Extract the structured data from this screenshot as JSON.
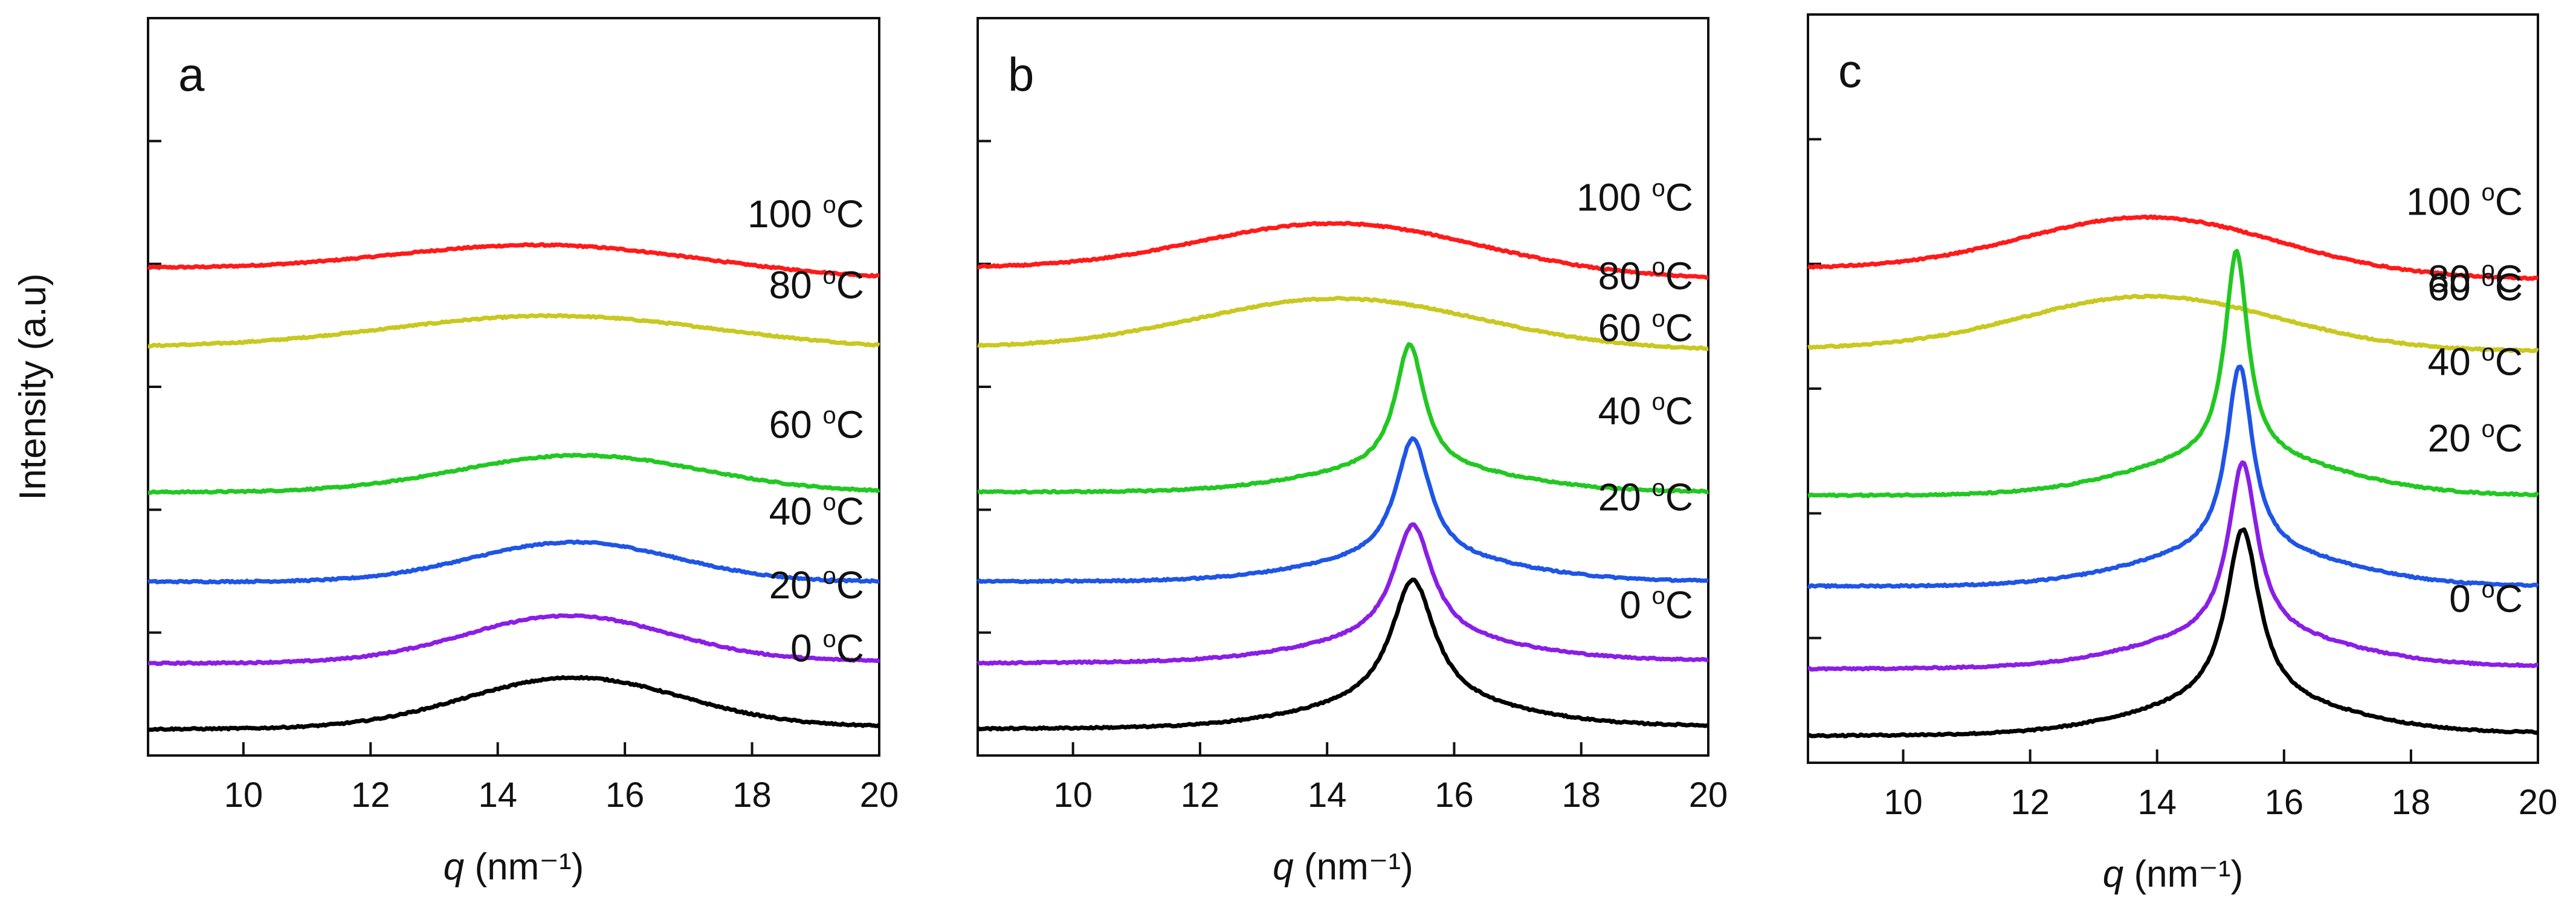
{
  "figure": {
    "ylabel": "Intensity (a.u)"
  },
  "chart_data": [
    {
      "type": "line",
      "panel": "a",
      "title": "a",
      "xlabel_var": "q",
      "xlabel_unit": "(nm⁻¹)",
      "xlim": [
        8.5,
        20
      ],
      "xticks": [
        10,
        12,
        14,
        16,
        18,
        20
      ],
      "ylim": [
        0,
        5.6
      ],
      "series": [
        {
          "name": "100 °C",
          "temp": "100",
          "unit": "C",
          "color": "#ff1a1a",
          "baseline": 3.7,
          "baseline_end": 3.62,
          "peak_x": 14.8,
          "peak_height": 0.22,
          "peak_width": 2.4,
          "shape": "gauss",
          "label_x": 15.0
        },
        {
          "name": "80 °C",
          "temp": "80",
          "unit": "C",
          "color": "#c8c820",
          "baseline": 3.1,
          "baseline_end": 3.08,
          "peak_x": 14.9,
          "peak_height": 0.25,
          "peak_width": 2.6,
          "shape": "gauss",
          "label_x": 15.2
        },
        {
          "name": "60 °C",
          "temp": "60",
          "unit": "C",
          "color": "#22c822",
          "baseline": 2.0,
          "baseline_end": 2.0,
          "peak_x": 15.3,
          "peak_height": 0.28,
          "peak_width": 1.9,
          "shape": "gauss",
          "label_x": 15.2
        },
        {
          "name": "40 °C",
          "temp": "40",
          "unit": "C",
          "color": "#1f55e6",
          "baseline": 1.32,
          "baseline_end": 1.32,
          "peak_x": 15.2,
          "peak_height": 0.3,
          "peak_width": 1.6,
          "shape": "gauss",
          "label_x": 15.2
        },
        {
          "name": "20 °C",
          "temp": "20",
          "unit": "C",
          "color": "#8a1ee6",
          "baseline": 0.7,
          "baseline_end": 0.72,
          "peak_x": 15.1,
          "peak_height": 0.35,
          "peak_width": 1.6,
          "shape": "gauss",
          "label_x": 15.2
        },
        {
          "name": "0 °C",
          "temp": "0",
          "unit": "C",
          "color": "#000000",
          "baseline": 0.2,
          "baseline_end": 0.22,
          "peak_x": 15.2,
          "peak_height": 0.38,
          "peak_width": 1.7,
          "shape": "gauss",
          "label_x": 16.2
        }
      ]
    },
    {
      "type": "line",
      "panel": "b",
      "title": "b",
      "xlabel_var": "q",
      "xlabel_unit": "(nm⁻¹)",
      "xlim": [
        8.5,
        20
      ],
      "xticks": [
        10,
        12,
        14,
        16,
        18,
        20
      ],
      "ylim": [
        0,
        5.6
      ],
      "series": [
        {
          "name": "100 °C",
          "temp": "100",
          "unit": "C",
          "color": "#ff1a1a",
          "baseline": 3.7,
          "baseline_end": 3.62,
          "peak_x": 14.2,
          "peak_height": 0.38,
          "peak_width": 2.2,
          "shape": "gauss",
          "label_x": 15.6
        },
        {
          "name": "80 °C",
          "temp": "80",
          "unit": "C",
          "color": "#c8c820",
          "baseline": 3.1,
          "baseline_end": 3.08,
          "peak_x": 14.2,
          "peak_height": 0.38,
          "peak_width": 2.2,
          "shape": "gauss",
          "label_x": 16.0
        },
        {
          "name": "60 °C",
          "temp": "60",
          "unit": "C",
          "color": "#22c822",
          "baseline": 2.0,
          "baseline_end": 2.0,
          "peak_x": 15.3,
          "peak_height": 0.95,
          "peak_width": 0.28,
          "shape": "lorentz",
          "label_x": 16.0
        },
        {
          "name": "40 °C",
          "temp": "40",
          "unit": "C",
          "color": "#1f55e6",
          "baseline": 1.32,
          "baseline_end": 1.32,
          "peak_x": 15.35,
          "peak_height": 0.92,
          "peak_width": 0.33,
          "shape": "lorentz",
          "label_x": 16.0
        },
        {
          "name": "20 °C",
          "temp": "20",
          "unit": "C",
          "color": "#8a1ee6",
          "baseline": 0.7,
          "baseline_end": 0.72,
          "peak_x": 15.35,
          "peak_height": 0.88,
          "peak_width": 0.38,
          "shape": "lorentz",
          "label_x": 16.0
        },
        {
          "name": "0 °C",
          "temp": "0",
          "unit": "C",
          "color": "#000000",
          "baseline": 0.2,
          "baseline_end": 0.22,
          "peak_x": 15.35,
          "peak_height": 0.95,
          "peak_width": 0.42,
          "shape": "lorentz",
          "label_x": 16.3
        }
      ]
    },
    {
      "type": "line",
      "panel": "c",
      "title": "c",
      "xlabel_var": "q",
      "xlabel_unit": "(nm⁻¹)",
      "xlim": [
        8.5,
        20
      ],
      "xticks": [
        10,
        12,
        14,
        16,
        18,
        20
      ],
      "ylim": [
        0,
        5.6
      ],
      "series": [
        {
          "name": "100 °C",
          "temp": "100",
          "unit": "C",
          "color": "#ff1a1a",
          "baseline": 3.7,
          "baseline_end": 3.62,
          "peak_x": 13.9,
          "peak_height": 0.42,
          "peak_width": 2.0,
          "shape": "gauss",
          "label_x": 16.0
        },
        {
          "name": "80 °C",
          "temp": "80",
          "unit": "C",
          "color": "#c8c820",
          "baseline": 3.1,
          "baseline_end": 3.08,
          "peak_x": 13.9,
          "peak_height": 0.4,
          "peak_width": 2.0,
          "shape": "gauss",
          "label_x": 16.0
        },
        {
          "name": "60 °C",
          "temp": "60",
          "unit": "C",
          "color": "#22c822",
          "baseline": 2.0,
          "baseline_end": 2.0,
          "peak_x": 15.25,
          "peak_height": 1.55,
          "peak_width": 0.22,
          "shape": "lorentz",
          "label_x": 16.0
        },
        {
          "name": "40 °C",
          "temp": "40",
          "unit": "C",
          "color": "#1f55e6",
          "baseline": 1.32,
          "baseline_end": 1.32,
          "peak_x": 15.3,
          "peak_height": 1.4,
          "peak_width": 0.25,
          "shape": "lorentz",
          "label_x": 16.0
        },
        {
          "name": "20 °C",
          "temp": "20",
          "unit": "C",
          "color": "#8a1ee6",
          "baseline": 0.7,
          "baseline_end": 0.72,
          "peak_x": 15.35,
          "peak_height": 1.3,
          "peak_width": 0.28,
          "shape": "lorentz",
          "label_x": 16.0
        },
        {
          "name": "0 °C",
          "temp": "0",
          "unit": "C",
          "color": "#000000",
          "baseline": 0.2,
          "baseline_end": 0.22,
          "peak_x": 15.35,
          "peak_height": 1.3,
          "peak_width": 0.32,
          "shape": "lorentz",
          "label_x": 16.3
        }
      ]
    }
  ]
}
